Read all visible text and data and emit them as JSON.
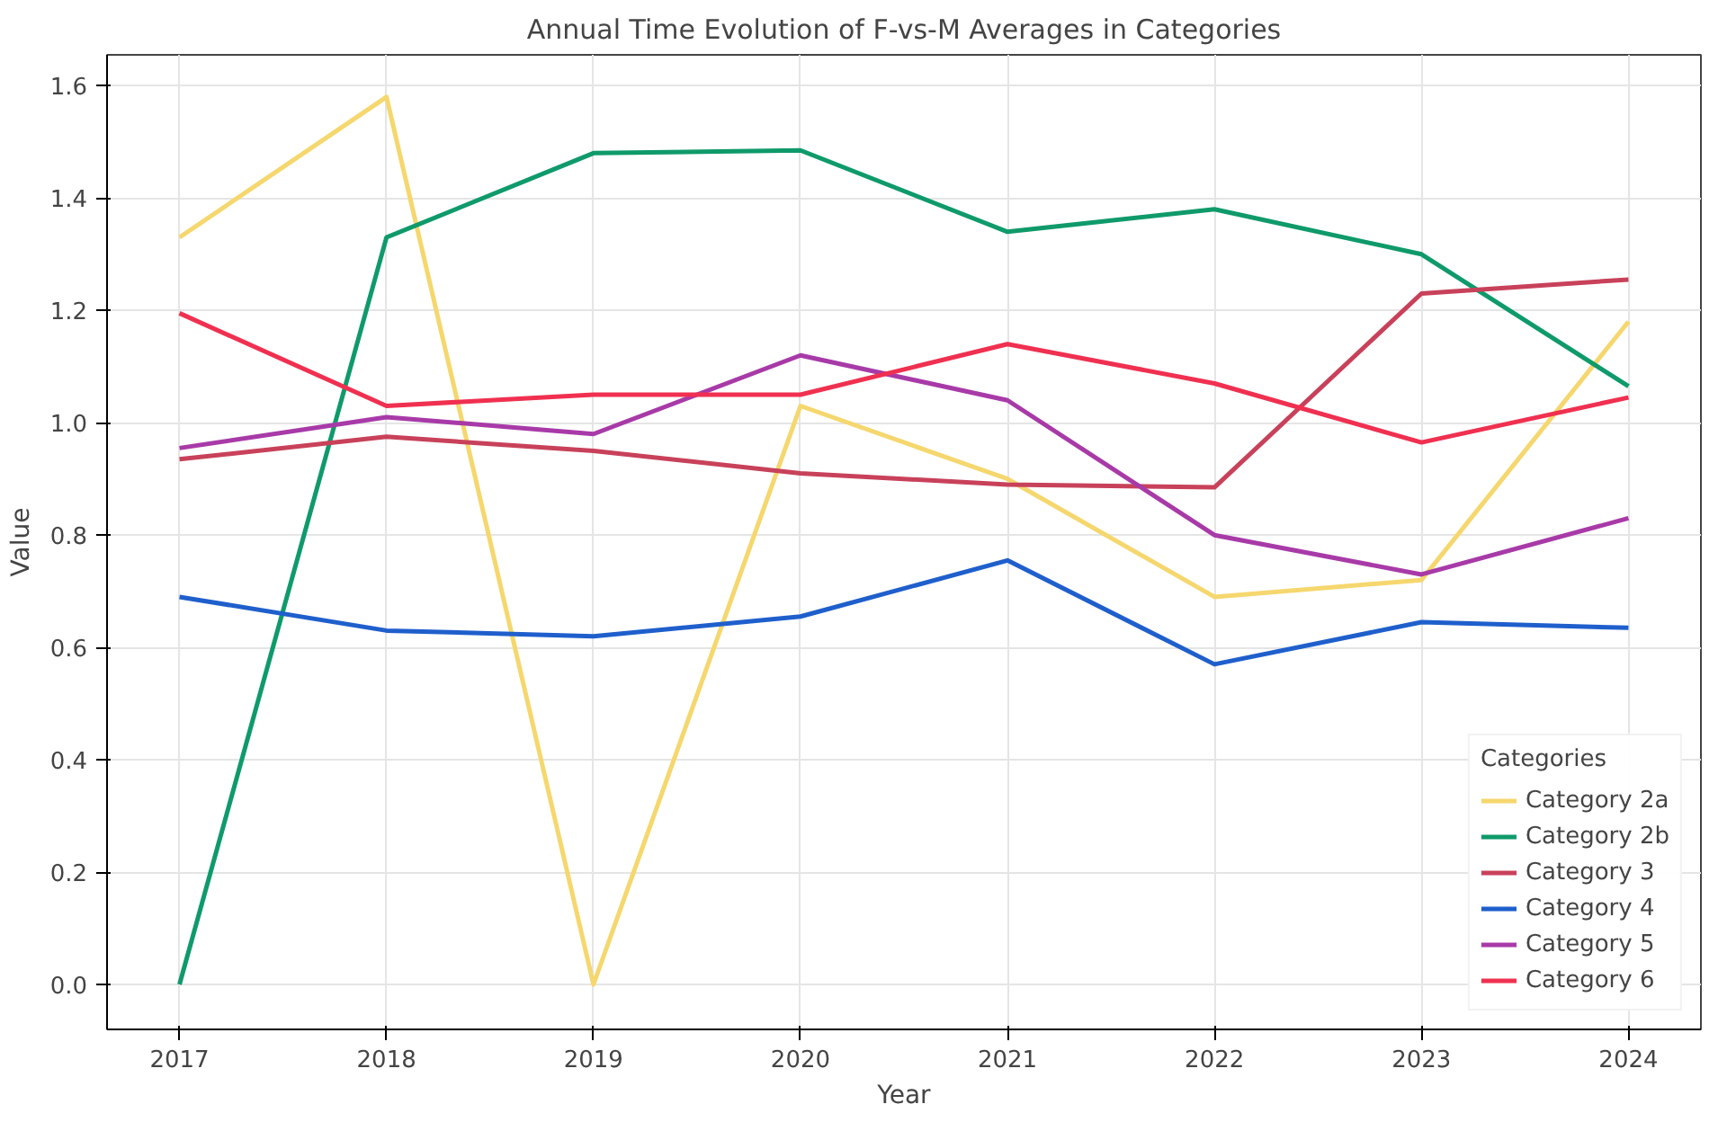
{
  "chart_data": {
    "type": "line",
    "title": "Annual Time Evolution of F-vs-M Averages in Categories",
    "xlabel": "Year",
    "ylabel": "Value",
    "legend_title": "Categories",
    "x": [
      2017,
      2018,
      2019,
      2020,
      2021,
      2022,
      2023,
      2024
    ],
    "series": [
      {
        "name": "Category 2a",
        "color": "#f5d76e",
        "values": [
          1.33,
          1.58,
          0.0,
          1.03,
          0.9,
          0.69,
          0.72,
          1.18
        ]
      },
      {
        "name": "Category 2b",
        "color": "#0f9a6a",
        "values": [
          0.0,
          1.33,
          1.48,
          1.485,
          1.34,
          1.38,
          1.3,
          1.065
        ]
      },
      {
        "name": "Category 3",
        "color": "#c8415a",
        "values": [
          0.935,
          0.975,
          0.95,
          0.91,
          0.89,
          0.885,
          1.23,
          1.255
        ]
      },
      {
        "name": "Category 4",
        "color": "#1f5fcc",
        "values": [
          0.69,
          0.63,
          0.62,
          0.655,
          0.755,
          0.57,
          0.645,
          0.635
        ]
      },
      {
        "name": "Category 5",
        "color": "#a83aa8",
        "values": [
          0.955,
          1.01,
          0.98,
          1.12,
          1.04,
          0.8,
          0.73,
          0.83
        ]
      },
      {
        "name": "Category 6",
        "color": "#f03050",
        "values": [
          1.195,
          1.03,
          1.05,
          1.05,
          1.14,
          1.07,
          0.965,
          1.045
        ]
      }
    ],
    "xlim": [
      2016.65,
      2024.35
    ],
    "ylim": [
      -0.08,
      1.655
    ],
    "xticks": [
      2017,
      2018,
      2019,
      2020,
      2021,
      2022,
      2023,
      2024
    ],
    "yticks": [
      {
        "value": 0,
        "label": "0.0"
      },
      {
        "value": 0.2,
        "label": "0.2"
      },
      {
        "value": 0.4,
        "label": "0.4"
      },
      {
        "value": 0.6,
        "label": "0.6"
      },
      {
        "value": 0.8,
        "label": "0.8"
      },
      {
        "value": 1.0,
        "label": "1.0"
      },
      {
        "value": 1.2,
        "label": "1.2"
      },
      {
        "value": 1.4,
        "label": "1.4"
      },
      {
        "value": 1.6,
        "label": "1.6"
      }
    ],
    "grid": true,
    "legend": "bottom right",
    "line_style": "solid"
  }
}
